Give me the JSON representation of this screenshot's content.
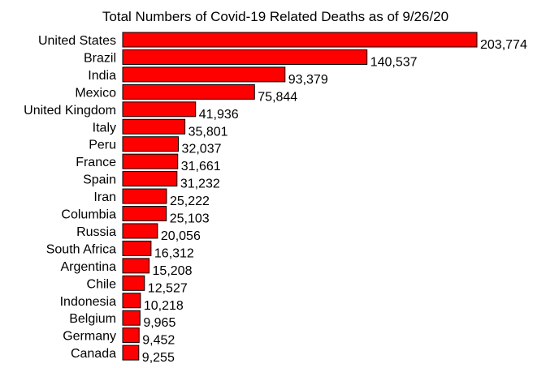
{
  "chart_data": {
    "type": "bar",
    "orientation": "horizontal",
    "title": "Total Numbers of Covid-19 Related Deaths as of 9/26/20",
    "xlabel": "",
    "ylabel": "",
    "grid": false,
    "legend": "none",
    "bar_color": "#ff0000",
    "bar_edge_color": "#000000",
    "categories": [
      "United States",
      "Brazil",
      "India",
      "Mexico",
      "United Kingdom",
      "Italy",
      "Peru",
      "France",
      "Spain",
      "Iran",
      "Columbia",
      "Russia",
      "South Africa",
      "Argentina",
      "Chile",
      "Indonesia",
      "Belgium",
      "Germany",
      "Canada"
    ],
    "values": [
      203774,
      140537,
      93379,
      75844,
      41936,
      35801,
      32037,
      31661,
      31232,
      25222,
      25103,
      20056,
      16312,
      15208,
      12527,
      10218,
      9965,
      9452,
      9255
    ],
    "value_labels": [
      "203,774",
      "140,537",
      "93,379",
      "75,844",
      "41,936",
      "35,801",
      "32,037",
      "31,661",
      "31,232",
      "25,222",
      "25,103",
      "20,056",
      "16,312",
      "15,208",
      "12,527",
      "10,218",
      "9,965",
      "9,452",
      "9,255"
    ]
  }
}
